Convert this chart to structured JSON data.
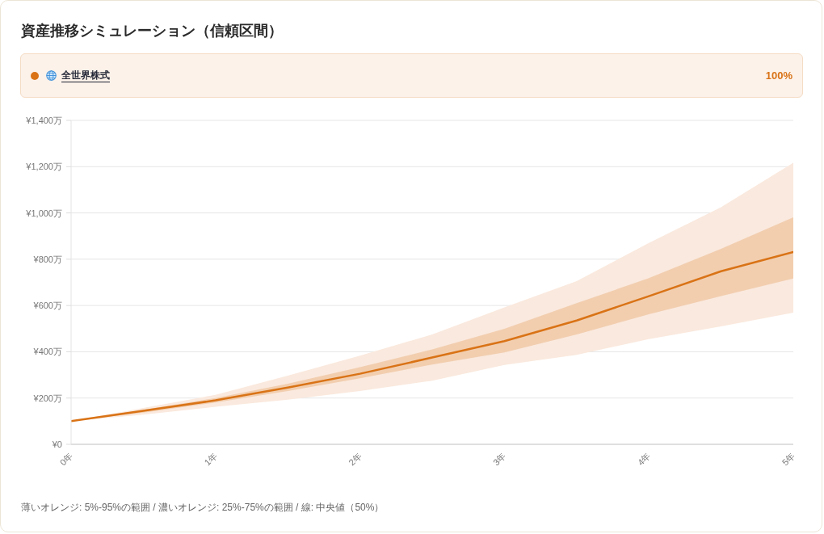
{
  "chart_data": {
    "type": "line",
    "title": "資産推移シミュレーション（信頼区間）",
    "x": [
      0,
      0.5,
      1,
      1.5,
      2,
      2.5,
      3,
      3.5,
      4,
      4.5,
      5
    ],
    "series": [
      {
        "type": "area",
        "color": "#fae9de",
        "values": [
          null,
          null,
          null,
          null,
          null,
          null,
          null,
          null,
          null,
          null,
          null
        ],
        "lower": [
          100,
          128,
          162,
          193,
          230,
          275,
          343,
          387,
          455,
          510,
          569
        ],
        "upper": [
          100,
          157,
          214,
          297,
          383,
          475,
          592,
          705,
          870,
          1025,
          1217
        ]
      },
      {
        "name": "全世界株式",
        "color": "#d97316",
        "values": [
          100,
          145,
          190,
          245,
          305,
          375,
          446,
          535,
          640,
          748,
          831
        ],
        "lower": [
          100,
          137,
          181,
          230,
          285,
          345,
          397,
          475,
          562,
          641,
          717
        ],
        "upper": [
          100,
          149,
          200,
          262,
          333,
          410,
          499,
          610,
          718,
          845,
          981
        ]
      }
    ],
    "xlim": [
      0,
      5
    ],
    "xticks": [
      {
        "value": 0,
        "label": "0年"
      },
      {
        "value": 1,
        "label": "1年"
      },
      {
        "value": 2,
        "label": "2年"
      },
      {
        "value": 3,
        "label": "3年"
      },
      {
        "value": 4,
        "label": "4年"
      },
      {
        "value": 5,
        "label": "5年"
      }
    ],
    "ylim": [
      0,
      1400
    ],
    "yticks": [
      {
        "value": 0,
        "label": "¥0"
      },
      {
        "value": 200,
        "label": "¥200万"
      },
      {
        "value": 400,
        "label": "¥400万"
      },
      {
        "value": 600,
        "label": "¥600万"
      },
      {
        "value": 800,
        "label": "¥800万"
      },
      {
        "value": 1000,
        "label": "¥1,000万"
      },
      {
        "value": 1200,
        "label": "¥1,200万"
      },
      {
        "value": 1400,
        "label": "¥1,400万"
      }
    ],
    "grid": "y",
    "legend": "top",
    "annotations": [
      "100%",
      "薄いオレンジ: 5%-95%の範囲 / 濃いオレンジ: 25%-75%の範囲 / 線: 中央値（50%）"
    ]
  }
}
